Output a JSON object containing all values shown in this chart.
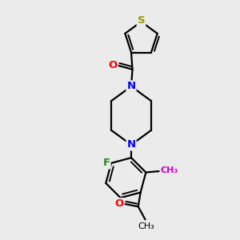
{
  "bg_color": "#ebebeb",
  "bond_color": "#000000",
  "bond_width": 1.6,
  "figsize": [
    3.0,
    3.0
  ],
  "dpi": 100,
  "atom_colors": {
    "O": "#ff0000",
    "N": "#0000ff",
    "F": "#228B22",
    "S": "#999900",
    "methyl": "#cc00cc"
  }
}
